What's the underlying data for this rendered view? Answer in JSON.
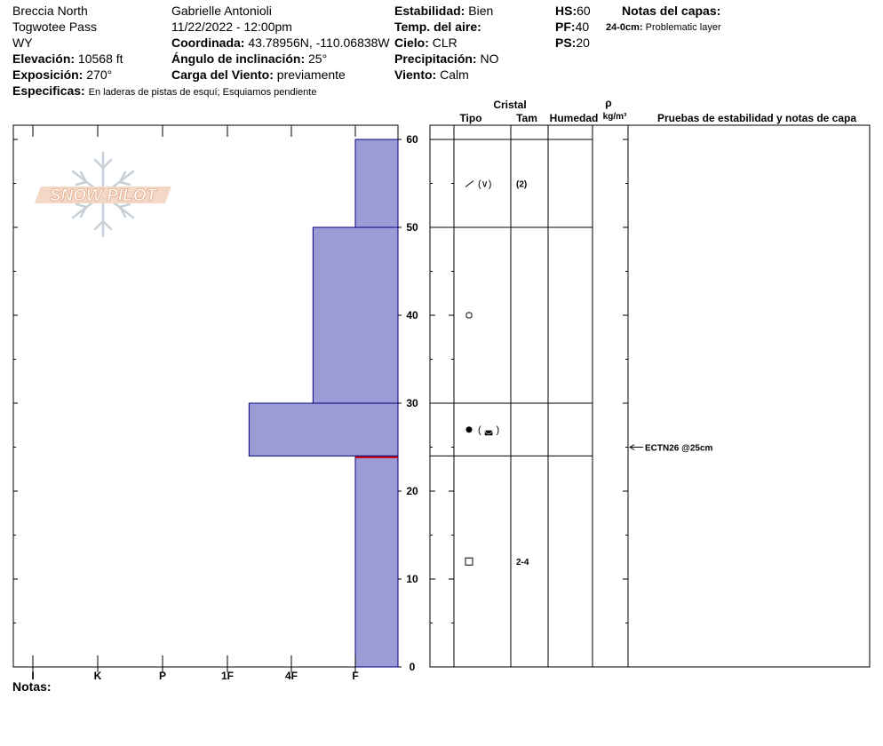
{
  "header": {
    "location_name": "Breccia North",
    "location_area": "Togwotee Pass",
    "location_state": "WY",
    "elevation_label": "Elevación:",
    "elevation_value": "10568 ft",
    "aspect_label": "Exposición:",
    "aspect_value": "270°",
    "specifics_label": "Especificas:",
    "specifics_value": "En laderas de pistas de esquí; Esquiamos pendiente",
    "observer": "Gabrielle Antonioli",
    "datetime": "11/22/2022 - 12:00pm",
    "coord_label": "Coordinada:",
    "coord_value": "43.78956N, -110.06838W",
    "slope_label": "Ángulo de inclinación:",
    "slope_value": "25°",
    "windload_label": "Carga del Viento:",
    "windload_value": "previamente",
    "stability_label": "Estabilidad:",
    "stability_value": "Bien",
    "airtemp_label": "Temp. del aire:",
    "airtemp_value": "",
    "sky_label": "Cielo:",
    "sky_value": "CLR",
    "precip_label": "Precipitación:",
    "precip_value": "NO",
    "wind_label": "Viento:",
    "wind_value": "Calm",
    "hs_label": "HS:",
    "hs_value": "60",
    "pf_label": "PF:",
    "pf_value": "40",
    "ps_label": "PS:",
    "ps_value": "20",
    "layer_notes_label": "Notas del capas:",
    "layer_note_depth": "24-0cm:",
    "layer_note_text": "Problematic layer"
  },
  "logo_text": "SNOW PILOT",
  "notes_label": "Notas:",
  "columns": {
    "crystal": "Cristal",
    "type": "Tipo",
    "size": "Tam",
    "moisture": "Humedad",
    "rho": "ρ",
    "density_unit": "kg/m³",
    "tests": "Pruebas de estabilidad y notas de capa"
  },
  "chart_data": {
    "type": "bar",
    "orientation": "horizontal",
    "y_axis": {
      "min": 0,
      "max": 60,
      "ticks": [
        0,
        10,
        20,
        30,
        40,
        50,
        60
      ],
      "unit": "cm"
    },
    "x_axis": {
      "categories": [
        "I",
        "K",
        "P",
        "1F",
        "4F",
        "F"
      ]
    },
    "layers": [
      {
        "top": 60,
        "bottom": 50,
        "hardness": "F"
      },
      {
        "top": 50,
        "bottom": 30,
        "hardness": "4F-"
      },
      {
        "top": 30,
        "bottom": 24,
        "hardness": "1F-"
      },
      {
        "top": 24,
        "bottom": 0,
        "hardness": "F"
      }
    ],
    "layer_boundaries": [
      60,
      50,
      30,
      24
    ],
    "crystals": [
      {
        "depth": 55,
        "type": "precipitation-particles",
        "secondary": "(∨)",
        "size": "(2)"
      },
      {
        "depth": 40,
        "type": "rounded-grains",
        "secondary": "",
        "size": ""
      },
      {
        "depth": 27,
        "type": "melt-forms",
        "secondary": "( ◛ )",
        "size": ""
      },
      {
        "depth": 12,
        "type": "faceted-crystals",
        "secondary": "",
        "size": "2-4"
      }
    ],
    "tests": [
      {
        "depth": 25,
        "label": "ECTN26 @25cm"
      }
    ],
    "problem_layer_depth": 24,
    "colors": {
      "bar_fill": "#9b9bd6",
      "bar_stroke": "#000080",
      "problem_line": "#cc0000",
      "test_arrow": "#000000"
    }
  }
}
